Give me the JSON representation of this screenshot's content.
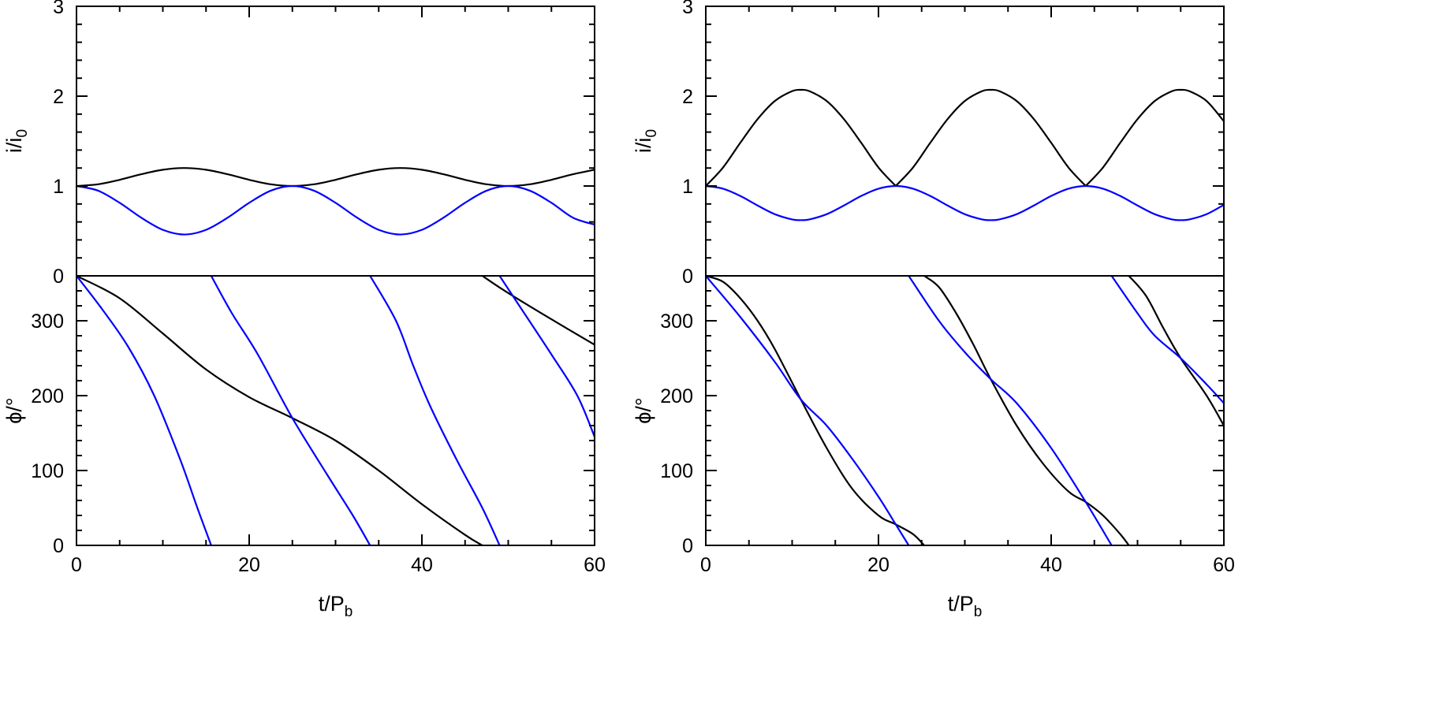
{
  "chart_data": [
    {
      "type": "line",
      "panels": [
        {
          "ylabel": {
            "main": "i/i",
            "sub": "0"
          },
          "ylim": [
            0,
            3
          ],
          "yticks": [
            0,
            1,
            2,
            3
          ],
          "yminor": 0.2,
          "series": [
            {
              "color": "#000000",
              "segments": [
                {
                  "x": [
                    0,
                    2.5,
                    5,
                    7.5,
                    10,
                    12.5,
                    15,
                    17.5,
                    20,
                    22.5,
                    25,
                    27.5,
                    30,
                    32.5,
                    35,
                    37.5,
                    40,
                    42.5,
                    45,
                    47.5,
                    50,
                    52.5,
                    55,
                    57.5,
                    60
                  ],
                  "y": [
                    1,
                    1.019,
                    1.069,
                    1.131,
                    1.181,
                    1.2,
                    1.181,
                    1.131,
                    1.069,
                    1.019,
                    1,
                    1.019,
                    1.069,
                    1.131,
                    1.181,
                    1.2,
                    1.181,
                    1.131,
                    1.069,
                    1.019,
                    1,
                    1.019,
                    1.069,
                    1.131,
                    1.181
                  ]
                }
              ]
            },
            {
              "color": "#0000ff",
              "segments": [
                {
                  "x": [
                    0,
                    2.5,
                    5,
                    7.5,
                    10,
                    12.5,
                    15,
                    17.5,
                    20,
                    22.5,
                    25,
                    27.5,
                    30,
                    32.5,
                    35,
                    37.5,
                    40,
                    42.5,
                    45,
                    47.5,
                    50,
                    52.5,
                    55,
                    57.5,
                    60
                  ],
                  "y": [
                    1,
                    0.948,
                    0.813,
                    0.647,
                    0.512,
                    0.46,
                    0.512,
                    0.647,
                    0.813,
                    0.948,
                    1,
                    0.948,
                    0.813,
                    0.647,
                    0.512,
                    0.46,
                    0.512,
                    0.647,
                    0.813,
                    0.948,
                    1,
                    0.948,
                    0.813,
                    0.647,
                    0.57
                  ]
                }
              ]
            }
          ]
        },
        {
          "ylabel": {
            "main": "ϕ/°",
            "sub": ""
          },
          "ylim": [
            0,
            360
          ],
          "yticks": [
            0,
            100,
            200,
            300
          ],
          "yminor": 20,
          "series": [
            {
              "color": "#000000",
              "segments": [
                {
                  "x": [
                    0,
                    5,
                    10,
                    15,
                    20,
                    25,
                    30,
                    35,
                    40,
                    45,
                    47
                  ],
                  "y": [
                    360,
                    330,
                    283,
                    235,
                    198,
                    170,
                    140,
                    100,
                    55,
                    14,
                    0
                  ]
                },
                {
                  "x": [
                    47,
                    50,
                    55,
                    60
                  ],
                  "y": [
                    360,
                    337,
                    302,
                    268
                  ]
                }
              ]
            },
            {
              "color": "#0000ff",
              "segments": [
                {
                  "x": [
                    0,
                    3,
                    6,
                    9,
                    12,
                    14,
                    15.6
                  ],
                  "y": [
                    360,
                    315,
                    265,
                    200,
                    115,
                    50,
                    0
                  ]
                },
                {
                  "x": [
                    15.6,
                    18,
                    21,
                    25,
                    29,
                    32,
                    34
                  ],
                  "y": [
                    360,
                    310,
                    255,
                    170,
                    95,
                    40,
                    0
                  ]
                },
                {
                  "x": [
                    34,
                    37,
                    39,
                    41,
                    44,
                    47,
                    49
                  ],
                  "y": [
                    360,
                    300,
                    240,
                    185,
                    115,
                    50,
                    0
                  ]
                },
                {
                  "x": [
                    49,
                    51,
                    55,
                    58,
                    60
                  ],
                  "y": [
                    360,
                    325,
                    255,
                    200,
                    145
                  ]
                }
              ]
            }
          ]
        }
      ],
      "xlabel": {
        "main": "t/P",
        "sub": "b"
      },
      "xlim": [
        0,
        60
      ],
      "xticks": [
        0,
        20,
        40,
        60
      ],
      "xminor": 5
    },
    {
      "type": "line",
      "panels": [
        {
          "ylabel": {
            "main": "i/i",
            "sub": "0"
          },
          "ylim": [
            0,
            3
          ],
          "yticks": [
            0,
            1,
            2,
            3
          ],
          "yminor": 0.2,
          "series": [
            {
              "color": "#000000",
              "segments": [
                {
                  "x": [
                    0,
                    2,
                    4,
                    6,
                    8,
                    10,
                    11,
                    12,
                    14,
                    16,
                    18,
                    20,
                    22
                  ],
                  "y": [
                    1,
                    1.206,
                    1.481,
                    1.744,
                    1.946,
                    2.056,
                    2.07,
                    2.056,
                    1.946,
                    1.744,
                    1.481,
                    1.206,
                    1
                  ]
                },
                {
                  "x": [
                    22,
                    24,
                    26,
                    28,
                    30,
                    32,
                    33,
                    34,
                    36,
                    38,
                    40,
                    42,
                    44
                  ],
                  "y": [
                    1,
                    1.206,
                    1.481,
                    1.744,
                    1.946,
                    2.056,
                    2.07,
                    2.056,
                    1.946,
                    1.744,
                    1.481,
                    1.206,
                    1
                  ]
                },
                {
                  "x": [
                    44,
                    46,
                    48,
                    50,
                    52,
                    54,
                    55,
                    56,
                    58,
                    60
                  ],
                  "y": [
                    1,
                    1.206,
                    1.481,
                    1.744,
                    1.946,
                    2.056,
                    2.07,
                    2.056,
                    1.946,
                    1.72
                  ]
                }
              ]
            },
            {
              "color": "#0000ff",
              "segments": [
                {
                  "x": [
                    0,
                    2,
                    4,
                    6,
                    8,
                    10,
                    11,
                    12,
                    14,
                    16,
                    18,
                    20,
                    22,
                    24,
                    26,
                    28,
                    30,
                    32,
                    33,
                    34,
                    36,
                    38,
                    40,
                    42,
                    44,
                    46,
                    48,
                    50,
                    52,
                    54,
                    55,
                    56,
                    58,
                    60
                  ],
                  "y": [
                    1,
                    0.97,
                    0.889,
                    0.783,
                    0.686,
                    0.628,
                    0.62,
                    0.628,
                    0.686,
                    0.783,
                    0.889,
                    0.97,
                    1,
                    0.97,
                    0.889,
                    0.783,
                    0.686,
                    0.628,
                    0.62,
                    0.628,
                    0.686,
                    0.783,
                    0.889,
                    0.97,
                    1,
                    0.97,
                    0.889,
                    0.783,
                    0.686,
                    0.628,
                    0.62,
                    0.628,
                    0.686,
                    0.79
                  ]
                }
              ]
            }
          ]
        },
        {
          "ylabel": {
            "main": "ϕ/°",
            "sub": ""
          },
          "ylim": [
            0,
            360
          ],
          "yticks": [
            0,
            100,
            200,
            300
          ],
          "yminor": 20,
          "series": [
            {
              "color": "#000000",
              "segments": [
                {
                  "x": [
                    0,
                    2,
                    4,
                    6,
                    8,
                    11,
                    14,
                    17,
                    20,
                    22,
                    24,
                    25.3
                  ],
                  "y": [
                    360,
                    352,
                    330,
                    300,
                    262,
                    195,
                    130,
                    75,
                    40,
                    28,
                    15,
                    0
                  ]
                },
                {
                  "x": [
                    25.3,
                    27,
                    29,
                    31,
                    33,
                    36,
                    39,
                    42,
                    44,
                    46,
                    48,
                    49
                  ],
                  "y": [
                    360,
                    345,
                    310,
                    268,
                    222,
                    160,
                    110,
                    72,
                    58,
                    40,
                    15,
                    0
                  ]
                },
                {
                  "x": [
                    49,
                    51,
                    53,
                    55,
                    58,
                    60
                  ],
                  "y": [
                    360,
                    333,
                    290,
                    250,
                    200,
                    160
                  ]
                }
              ]
            },
            {
              "color": "#0000ff",
              "segments": [
                {
                  "x": [
                    0,
                    4,
                    8,
                    11,
                    14,
                    17,
                    20,
                    22,
                    23.5
                  ],
                  "y": [
                    360,
                    305,
                    245,
                    195,
                    160,
                    115,
                    65,
                    28,
                    0
                  ]
                },
                {
                  "x": [
                    23.5,
                    27,
                    30,
                    33,
                    36,
                    40,
                    44,
                    47
                  ],
                  "y": [
                    360,
                    300,
                    258,
                    222,
                    190,
                    130,
                    58,
                    0
                  ]
                },
                {
                  "x": [
                    47,
                    50,
                    52,
                    55,
                    58,
                    60
                  ],
                  "y": [
                    360,
                    310,
                    280,
                    250,
                    215,
                    190
                  ]
                }
              ]
            }
          ]
        }
      ],
      "xlabel": {
        "main": "t/P",
        "sub": "b"
      },
      "xlim": [
        0,
        60
      ],
      "xticks": [
        0,
        20,
        40,
        60
      ],
      "xminor": 5
    }
  ]
}
